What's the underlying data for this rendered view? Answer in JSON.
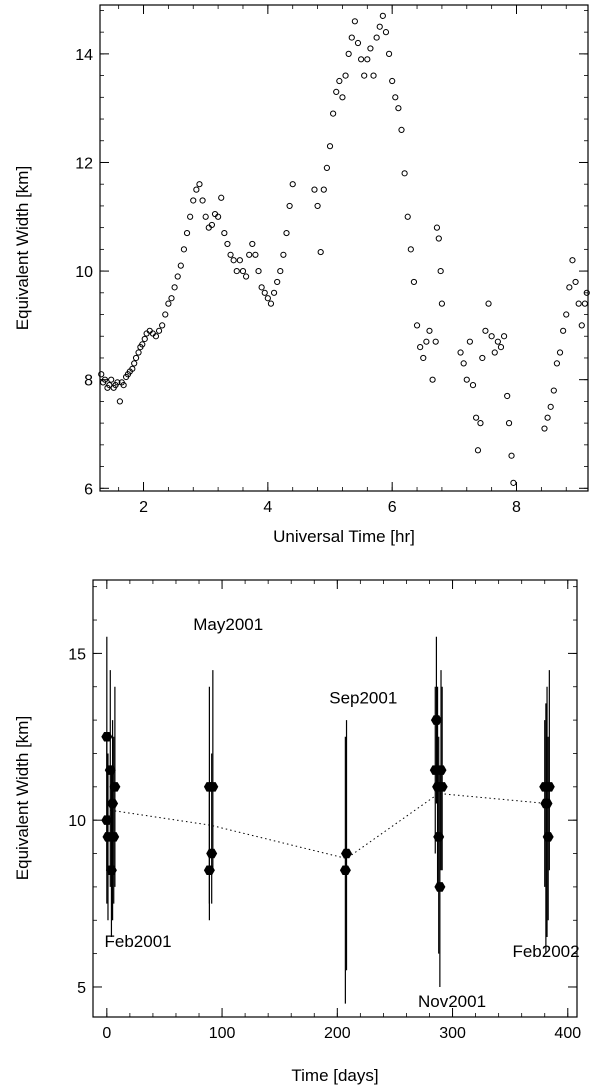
{
  "chart_data": [
    {
      "type": "scatter",
      "xlabel": "Universal Time [hr]",
      "ylabel": "Equivalent Width [km]",
      "xlim": [
        1.3,
        9.15
      ],
      "ylim": [
        5.95,
        14.9
      ],
      "xticks": [
        2,
        4,
        6,
        8
      ],
      "yticks": [
        6,
        8,
        10,
        12,
        14
      ],
      "xtick_labels": [
        "2",
        "4",
        "6",
        "8"
      ],
      "ytick_labels": [
        "6",
        "8",
        "10",
        "12",
        "14"
      ],
      "marker": "open-circle",
      "grid": false,
      "series": [
        {
          "values": [
            [
              1.32,
              8.1
            ],
            [
              1.35,
              7.95
            ],
            [
              1.38,
              8.0
            ],
            [
              1.42,
              7.85
            ],
            [
              1.45,
              7.9
            ],
            [
              1.48,
              8.0
            ],
            [
              1.52,
              7.85
            ],
            [
              1.55,
              7.9
            ],
            [
              1.58,
              7.95
            ],
            [
              1.62,
              7.6
            ],
            [
              1.65,
              7.95
            ],
            [
              1.68,
              7.9
            ],
            [
              1.72,
              8.05
            ],
            [
              1.75,
              8.1
            ],
            [
              1.78,
              8.15
            ],
            [
              1.82,
              8.2
            ],
            [
              1.85,
              8.3
            ],
            [
              1.88,
              8.4
            ],
            [
              1.92,
              8.5
            ],
            [
              1.95,
              8.6
            ],
            [
              1.98,
              8.65
            ],
            [
              2.02,
              8.75
            ],
            [
              2.05,
              8.85
            ],
            [
              2.1,
              8.9
            ],
            [
              2.15,
              8.85
            ],
            [
              2.2,
              8.8
            ],
            [
              2.25,
              8.9
            ],
            [
              2.3,
              9.0
            ],
            [
              2.35,
              9.2
            ],
            [
              2.4,
              9.4
            ],
            [
              2.45,
              9.5
            ],
            [
              2.5,
              9.7
            ],
            [
              2.55,
              9.9
            ],
            [
              2.6,
              10.1
            ],
            [
              2.65,
              10.4
            ],
            [
              2.7,
              10.7
            ],
            [
              2.75,
              11.0
            ],
            [
              2.8,
              11.3
            ],
            [
              2.85,
              11.5
            ],
            [
              2.9,
              11.6
            ],
            [
              2.95,
              11.3
            ],
            [
              3.0,
              11.0
            ],
            [
              3.05,
              10.8
            ],
            [
              3.1,
              10.85
            ],
            [
              3.15,
              11.05
            ],
            [
              3.2,
              11.0
            ],
            [
              3.25,
              11.35
            ],
            [
              3.3,
              10.7
            ],
            [
              3.35,
              10.5
            ],
            [
              3.4,
              10.3
            ],
            [
              3.45,
              10.2
            ],
            [
              3.5,
              10.0
            ],
            [
              3.55,
              10.2
            ],
            [
              3.6,
              10.0
            ],
            [
              3.65,
              9.9
            ],
            [
              3.7,
              10.3
            ],
            [
              3.75,
              10.5
            ],
            [
              3.8,
              10.3
            ],
            [
              3.85,
              10.0
            ],
            [
              3.9,
              9.7
            ],
            [
              3.95,
              9.6
            ],
            [
              4.0,
              9.5
            ],
            [
              4.05,
              9.4
            ],
            [
              4.1,
              9.6
            ],
            [
              4.15,
              9.8
            ],
            [
              4.2,
              10.0
            ],
            [
              4.25,
              10.3
            ],
            [
              4.3,
              10.7
            ],
            [
              4.35,
              11.2
            ],
            [
              4.4,
              11.6
            ],
            [
              4.75,
              11.5
            ],
            [
              4.8,
              11.2
            ],
            [
              4.85,
              10.35
            ],
            [
              4.9,
              11.5
            ],
            [
              4.95,
              11.9
            ],
            [
              5.0,
              12.3
            ],
            [
              5.05,
              12.9
            ],
            [
              5.1,
              13.3
            ],
            [
              5.15,
              13.5
            ],
            [
              5.2,
              13.2
            ],
            [
              5.25,
              13.6
            ],
            [
              5.3,
              14.0
            ],
            [
              5.35,
              14.3
            ],
            [
              5.4,
              14.6
            ],
            [
              5.45,
              14.2
            ],
            [
              5.5,
              13.9
            ],
            [
              5.55,
              13.6
            ],
            [
              5.6,
              13.9
            ],
            [
              5.65,
              14.1
            ],
            [
              5.7,
              13.6
            ],
            [
              5.75,
              14.3
            ],
            [
              5.8,
              14.5
            ],
            [
              5.85,
              14.7
            ],
            [
              5.9,
              14.4
            ],
            [
              5.95,
              14.0
            ],
            [
              6.0,
              13.5
            ],
            [
              6.05,
              13.2
            ],
            [
              6.1,
              13.0
            ],
            [
              6.15,
              12.6
            ],
            [
              6.2,
              11.8
            ],
            [
              6.25,
              11.0
            ],
            [
              6.3,
              10.4
            ],
            [
              6.35,
              9.8
            ],
            [
              6.4,
              9.0
            ],
            [
              6.45,
              8.6
            ],
            [
              6.5,
              8.4
            ],
            [
              6.55,
              8.7
            ],
            [
              6.6,
              8.9
            ],
            [
              6.65,
              8.0
            ],
            [
              6.7,
              8.7
            ],
            [
              6.72,
              10.8
            ],
            [
              6.75,
              10.6
            ],
            [
              6.78,
              10.0
            ],
            [
              6.8,
              9.4
            ],
            [
              7.1,
              8.5
            ],
            [
              7.15,
              8.3
            ],
            [
              7.2,
              8.0
            ],
            [
              7.25,
              8.7
            ],
            [
              7.3,
              7.9
            ],
            [
              7.35,
              7.3
            ],
            [
              7.38,
              6.7
            ],
            [
              7.42,
              7.2
            ],
            [
              7.45,
              8.4
            ],
            [
              7.5,
              8.9
            ],
            [
              7.55,
              9.4
            ],
            [
              7.6,
              8.8
            ],
            [
              7.65,
              8.5
            ],
            [
              7.7,
              8.7
            ],
            [
              7.75,
              8.6
            ],
            [
              7.8,
              8.8
            ],
            [
              7.85,
              7.7
            ],
            [
              7.88,
              7.2
            ],
            [
              7.92,
              6.6
            ],
            [
              7.95,
              6.1
            ],
            [
              8.45,
              7.1
            ],
            [
              8.5,
              7.3
            ],
            [
              8.55,
              7.5
            ],
            [
              8.6,
              7.8
            ],
            [
              8.65,
              8.3
            ],
            [
              8.7,
              8.5
            ],
            [
              8.75,
              8.9
            ],
            [
              8.8,
              9.2
            ],
            [
              8.85,
              9.7
            ],
            [
              8.9,
              10.2
            ],
            [
              8.95,
              9.8
            ],
            [
              9.0,
              9.4
            ],
            [
              9.05,
              9.0
            ],
            [
              9.1,
              9.4
            ],
            [
              9.13,
              9.6
            ]
          ]
        }
      ]
    },
    {
      "type": "scatter",
      "xlabel": "Time [days]",
      "ylabel": "Equivalent Width [km]",
      "xlim": [
        -12,
        408
      ],
      "ylim": [
        4.1,
        17.2
      ],
      "xticks": [
        0,
        100,
        200,
        300,
        400
      ],
      "yticks": [
        5,
        10,
        15
      ],
      "xtick_labels": [
        "0",
        "100",
        "200",
        "300",
        "400"
      ],
      "ytick_labels": [
        "5",
        "10",
        "15"
      ],
      "marker": "filled-hexagon",
      "grid": false,
      "series": [
        {
          "points": [
            {
              "x": 0,
              "y": 12.5,
              "lo": 8.5,
              "hi": 15.5
            },
            {
              "x": 0,
              "y": 10.0,
              "lo": 7.5,
              "hi": 12.5
            },
            {
              "x": 1,
              "y": 9.5,
              "lo": 7.0,
              "hi": 12.0
            },
            {
              "x": 3,
              "y": 11.5,
              "lo": 8.0,
              "hi": 14.5
            },
            {
              "x": 4,
              "y": 8.5,
              "lo": 6.5,
              "hi": 11.5
            },
            {
              "x": 5,
              "y": 10.5,
              "lo": 7.0,
              "hi": 13.0
            },
            {
              "x": 6,
              "y": 9.5,
              "lo": 7.5,
              "hi": 12.5
            },
            {
              "x": 7,
              "y": 11.0,
              "lo": 8.0,
              "hi": 14.0
            },
            {
              "x": 89,
              "y": 11.0,
              "lo": 7.0,
              "hi": 14.0
            },
            {
              "x": 89,
              "y": 8.5,
              "lo": 7.5,
              "hi": 11.0
            },
            {
              "x": 91,
              "y": 9.0,
              "lo": 7.5,
              "hi": 12.0
            },
            {
              "x": 92,
              "y": 11.0,
              "lo": 8.5,
              "hi": 14.5
            },
            {
              "x": 207,
              "y": 8.5,
              "lo": 4.5,
              "hi": 12.5
            },
            {
              "x": 208,
              "y": 9.0,
              "lo": 5.5,
              "hi": 13.0
            },
            {
              "x": 285,
              "y": 11.5,
              "lo": 9.0,
              "hi": 14.0
            },
            {
              "x": 286,
              "y": 13.0,
              "lo": 10.5,
              "hi": 15.5
            },
            {
              "x": 287,
              "y": 11.0,
              "lo": 8.0,
              "hi": 14.0
            },
            {
              "x": 288,
              "y": 9.5,
              "lo": 6.0,
              "hi": 12.5
            },
            {
              "x": 289,
              "y": 8.0,
              "lo": 5.0,
              "hi": 11.5
            },
            {
              "x": 290,
              "y": 11.5,
              "lo": 8.5,
              "hi": 14.5
            },
            {
              "x": 291,
              "y": 11.0,
              "lo": 8.5,
              "hi": 14.0
            },
            {
              "x": 380,
              "y": 11.0,
              "lo": 8.0,
              "hi": 13.0
            },
            {
              "x": 381,
              "y": 10.5,
              "lo": 6.0,
              "hi": 13.5
            },
            {
              "x": 382,
              "y": 10.5,
              "lo": 6.5,
              "hi": 14.0
            },
            {
              "x": 383,
              "y": 9.5,
              "lo": 7.0,
              "hi": 12.5
            },
            {
              "x": 384,
              "y": 11.0,
              "lo": 8.5,
              "hi": 14.5
            }
          ],
          "trend": [
            [
              3,
              10.3
            ],
            [
              90,
              9.85
            ],
            [
              208,
              8.85
            ],
            [
              288,
              10.8
            ],
            [
              382,
              10.5
            ]
          ]
        }
      ],
      "annotations": [
        {
          "text": "Feb2001",
          "x": -2,
          "y": 6.2
        },
        {
          "text": "May2001",
          "x": 75,
          "y": 15.7
        },
        {
          "text": "Sep2001",
          "x": 193,
          "y": 13.5
        },
        {
          "text": "Nov2001",
          "x": 270,
          "y": 4.4
        },
        {
          "text": "Feb2002",
          "x": 352,
          "y": 5.9
        }
      ]
    }
  ]
}
